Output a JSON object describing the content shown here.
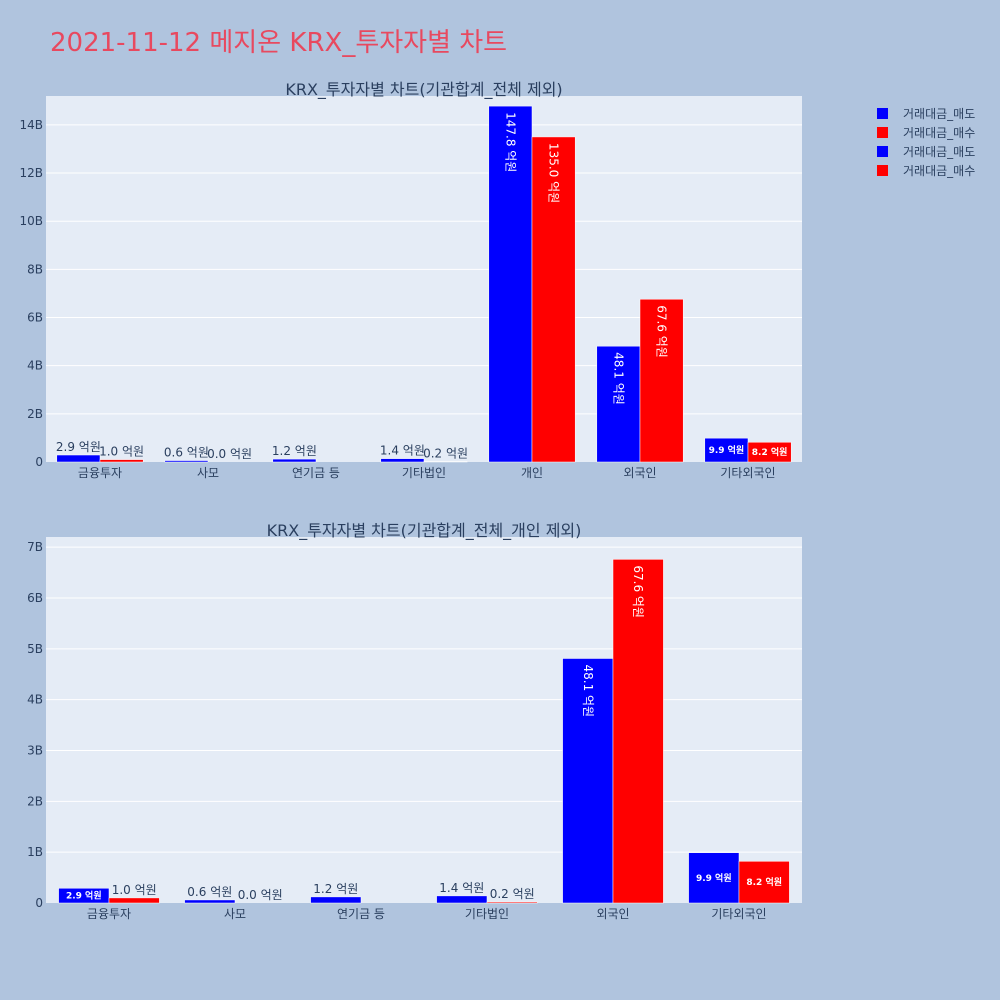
{
  "page": {
    "title": "2021-11-12 메지온 KRX_투자자별 차트"
  },
  "legend": [
    {
      "name": "거래대금_매도",
      "color": "#0000ff"
    },
    {
      "name": "거래대금_매수",
      "color": "#ff0000"
    },
    {
      "name": "거래대금_매도",
      "color": "#0000ff"
    },
    {
      "name": "거래대금_매수",
      "color": "#ff0000"
    }
  ],
  "chart_data": [
    {
      "type": "bar",
      "title": "KRX_투자자별 차트(기관합계_전체 제외)",
      "categories": [
        "금융투자",
        "사모",
        "연기금 등",
        "기타법인",
        "개인",
        "외국인",
        "기타외국인"
      ],
      "ylim": [
        0,
        15.2
      ],
      "yticks": [
        0,
        2,
        4,
        6,
        8,
        10,
        12,
        14
      ],
      "ytick_labels": [
        "0",
        "2B",
        "4B",
        "6B",
        "8B",
        "10B",
        "12B",
        "14B"
      ],
      "grid": true,
      "series": [
        {
          "name": "거래대금_매도",
          "color": "#0000ff",
          "values": [
            0.29,
            0.06,
            0.12,
            0.14,
            14.78,
            4.81,
            0.99
          ],
          "labels": [
            "2.9 억원",
            "0.6 억원",
            "1.2 억원",
            "1.4 억원",
            "147.8 억원",
            "48.1 억원",
            "9.9 억원"
          ]
        },
        {
          "name": "거래대금_매수",
          "color": "#ff0000",
          "values": [
            0.1,
            0.0,
            null,
            0.02,
            13.5,
            6.76,
            0.82
          ],
          "labels": [
            "1.0 억원",
            "0.0 억원",
            "",
            "0.2 억원",
            "135.0 억원",
            "67.6 억원",
            "8.2 억원"
          ]
        }
      ]
    },
    {
      "type": "bar",
      "title": "KRX_투자자별 차트(기관합계_전체_개인 제외)",
      "categories": [
        "금융투자",
        "사모",
        "연기금 등",
        "기타법인",
        "외국인",
        "기타외국인"
      ],
      "ylim": [
        0,
        7.2
      ],
      "yticks": [
        0,
        1,
        2,
        3,
        4,
        5,
        6,
        7
      ],
      "ytick_labels": [
        "0",
        "1B",
        "2B",
        "3B",
        "4B",
        "5B",
        "6B",
        "7B"
      ],
      "grid": true,
      "series": [
        {
          "name": "거래대금_매도",
          "color": "#0000ff",
          "values": [
            0.29,
            0.06,
            0.12,
            0.14,
            4.81,
            0.99
          ],
          "labels": [
            "2.9 억원",
            "0.6 억원",
            "1.2 억원",
            "1.4 억원",
            "48.1 억원",
            "9.9 억원"
          ]
        },
        {
          "name": "거래대금_매수",
          "color": "#ff0000",
          "values": [
            0.1,
            0.0,
            null,
            0.02,
            6.76,
            0.82
          ],
          "labels": [
            "1.0 억원",
            "0.0 억원",
            "",
            "0.2 억원",
            "67.6 억원",
            "8.2 억원"
          ]
        }
      ]
    }
  ]
}
